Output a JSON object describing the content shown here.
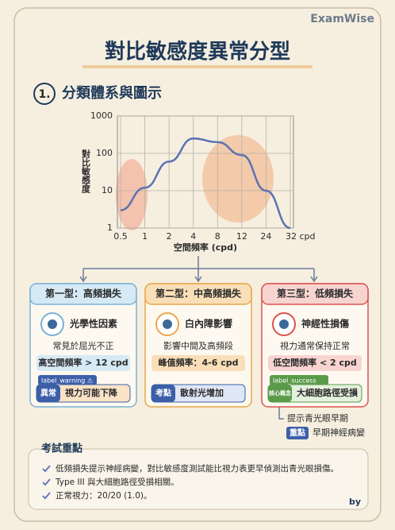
{
  "header": {
    "brand": "ExamWise",
    "title": "對比敏感度異常分型",
    "section_number": "1.",
    "section_title": "分類體系與圖示"
  },
  "chart_data": {
    "type": "line",
    "y_label": "對比敏感度",
    "x_label": "空間頻率 (cpd)",
    "categories": [
      "0.5",
      "1",
      "2",
      "4",
      "8",
      "12",
      "24",
      "32 cpd"
    ],
    "values": [
      3,
      12,
      60,
      250,
      200,
      90,
      10,
      1
    ],
    "color": "#5b73b3",
    "ylim": [
      1,
      1000
    ],
    "yticks": [
      1,
      10,
      100,
      1000
    ],
    "log_y": true,
    "grid": true
  },
  "cards": [
    {
      "title": "第一型：高頻損失",
      "cause": "光學性因素",
      "desc": "常見於屈光不正",
      "key": "高空間頻率 > 12 cpd",
      "label": "label_warning ⚠",
      "tag": "異常",
      "note": "視力可能下降"
    },
    {
      "title": "第二型：中高頻損失",
      "cause": "白內障影響",
      "desc": "影響中間及高頻段",
      "key": "峰值頻率：4-6 cpd",
      "tag": "考點",
      "note": "散射光增加"
    },
    {
      "title": "第三型：低頻損失",
      "cause": "神經性損傷",
      "desc": "視力通常保持正常",
      "key": "低空間頻率 < 2 cpd",
      "label": "label_success",
      "tag": "核心概念",
      "note": "大細胞路徑受損"
    }
  ],
  "hint": {
    "text": "提示青光眼早期",
    "tag": "重點",
    "note": "早期神經病變"
  },
  "notes": {
    "title": "考試重點",
    "items": [
      "低頻損失提示神經病變，對比敏感度測試能比視力表更早偵測出青光眼損傷。",
      "Type III 與大細胞路徑受損相關。",
      "正常視力：20/20 (1.0)。"
    ]
  },
  "footer": "by"
}
